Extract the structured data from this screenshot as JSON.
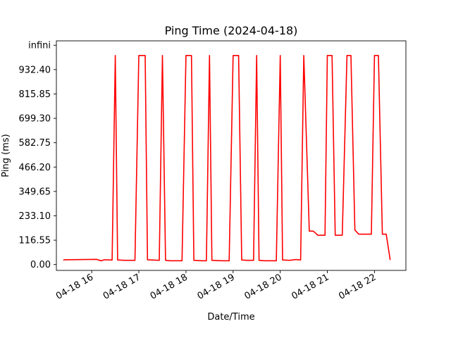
{
  "chart_data": {
    "type": "line",
    "title": "Ping Time (2024-04-18)",
    "xlabel": "Date/Time",
    "ylabel": "Ping (ms)",
    "y_ticks": [
      0.0,
      116.55,
      233.1,
      349.65,
      466.2,
      582.75,
      699.3,
      815.85,
      932.4,
      1048.95
    ],
    "y_tick_labels": [
      "0.00",
      "116.55",
      "233.10",
      "349.65",
      "466.20",
      "582.75",
      "699.30",
      "815.85",
      "932.40",
      "infini"
    ],
    "x_ticks": [
      "04-18 16",
      "04-18 17",
      "04-18 18",
      "04-18 19",
      "04-18 20",
      "04-18 21",
      "04-18 22"
    ],
    "xlim": [
      "04-18 15:15",
      "04-18 22:40"
    ],
    "ylim": [
      -28,
      1070
    ],
    "grid": false,
    "series": [
      {
        "color": "#ff0000",
        "points": [
          [
            "04-18 15:24",
            20
          ],
          [
            "04-18 15:25",
            23
          ],
          [
            "04-18 16:06",
            25
          ],
          [
            "04-18 16:12",
            18
          ],
          [
            "04-18 16:16",
            23
          ],
          [
            "04-18 16:26",
            22
          ],
          [
            "04-18 16:30",
            1000
          ],
          [
            "04-18 16:33",
            22
          ],
          [
            "04-18 16:42",
            20
          ],
          [
            "04-18 16:55",
            20
          ],
          [
            "04-18 17:00",
            1000
          ],
          [
            "04-18 17:08",
            1000
          ],
          [
            "04-18 17:11",
            23
          ],
          [
            "04-18 17:26",
            20
          ],
          [
            "04-18 17:30",
            1000
          ],
          [
            "04-18 17:34",
            20
          ],
          [
            "04-18 17:40",
            18
          ],
          [
            "04-18 17:55",
            18
          ],
          [
            "04-18 18:00",
            1000
          ],
          [
            "04-18 18:07",
            1000
          ],
          [
            "04-18 18:10",
            20
          ],
          [
            "04-18 18:20",
            18
          ],
          [
            "04-18 18:26",
            18
          ],
          [
            "04-18 18:30",
            1000
          ],
          [
            "04-18 18:33",
            20
          ],
          [
            "04-18 18:45",
            18
          ],
          [
            "04-18 18:55",
            18
          ],
          [
            "04-18 19:00",
            1000
          ],
          [
            "04-18 19:07",
            1000
          ],
          [
            "04-18 19:11",
            22
          ],
          [
            "04-18 19:17",
            20
          ],
          [
            "04-18 19:26",
            20
          ],
          [
            "04-18 19:30",
            1000
          ],
          [
            "04-18 19:33",
            20
          ],
          [
            "04-18 19:40",
            18
          ],
          [
            "04-18 19:55",
            18
          ],
          [
            "04-18 20:00",
            1000
          ],
          [
            "04-18 20:03",
            22
          ],
          [
            "04-18 20:12",
            20
          ],
          [
            "04-18 20:20",
            24
          ],
          [
            "04-18 20:26",
            22
          ],
          [
            "04-18 20:30",
            1000
          ],
          [
            "04-18 20:37",
            160
          ],
          [
            "04-18 20:42",
            160
          ],
          [
            "04-18 20:48",
            140
          ],
          [
            "04-18 20:57",
            140
          ],
          [
            "04-18 21:00",
            1000
          ],
          [
            "04-18 21:06",
            1000
          ],
          [
            "04-18 21:10",
            140
          ],
          [
            "04-18 21:15",
            140
          ],
          [
            "04-18 21:19",
            140
          ],
          [
            "04-18 21:25",
            1000
          ],
          [
            "04-18 21:30",
            1000
          ],
          [
            "04-18 21:35",
            165
          ],
          [
            "04-18 21:40",
            145
          ],
          [
            "04-18 21:56",
            145
          ],
          [
            "04-18 22:00",
            1000
          ],
          [
            "04-18 22:05",
            1000
          ],
          [
            "04-18 22:10",
            145
          ],
          [
            "04-18 22:15",
            145
          ],
          [
            "04-18 22:20",
            22
          ]
        ]
      }
    ]
  }
}
